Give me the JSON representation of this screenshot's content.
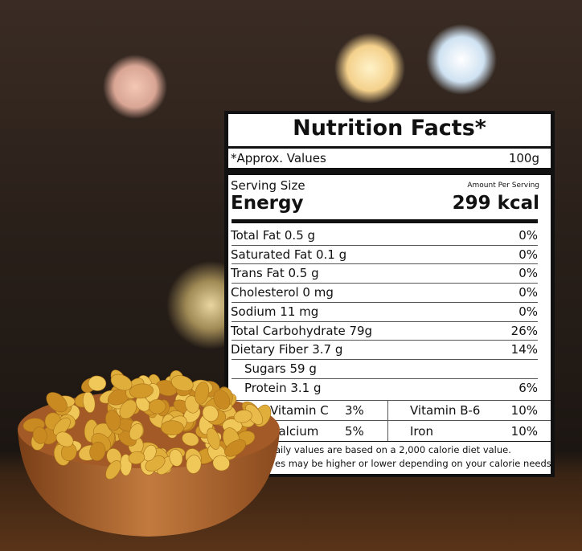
{
  "label": {
    "title": "Nutrition Facts*",
    "approx": "*Approx. Values",
    "quantity": "100g",
    "serving_size": "Serving Size",
    "amount_per_serving": "Amount Per Serving",
    "energy_label": "Energy",
    "energy_value": "299 kcal",
    "rows": [
      {
        "name": "Total Fat 0.5 g",
        "dv": "0%"
      },
      {
        "name": "Saturated Fat 0.1 g",
        "dv": "0%"
      },
      {
        "name": "Trans Fat 0.5 g",
        "dv": "0%"
      },
      {
        "name": "Cholesterol 0 mg",
        "dv": "0%"
      },
      {
        "name": "Sodium 11 mg",
        "dv": "0%"
      },
      {
        "name": "Total Carbohydrate 79g",
        "dv": "26%"
      },
      {
        "name": "Dietary Fiber 3.7 g",
        "dv": "14%"
      },
      {
        "name": "Sugars 59 g"
      },
      {
        "name": "Protein 3.1 g",
        "dv": "6%"
      }
    ],
    "vitamins": [
      [
        "Vitamin C",
        "3%",
        "Vitamin B-6",
        "10%"
      ],
      [
        "Calcium",
        "5%",
        "Iron",
        "10%"
      ]
    ],
    "footnote": [
      "aily values are based on a 2,000 calorie diet value.",
      "es may be higher or lower depending on your calorie needs."
    ]
  }
}
